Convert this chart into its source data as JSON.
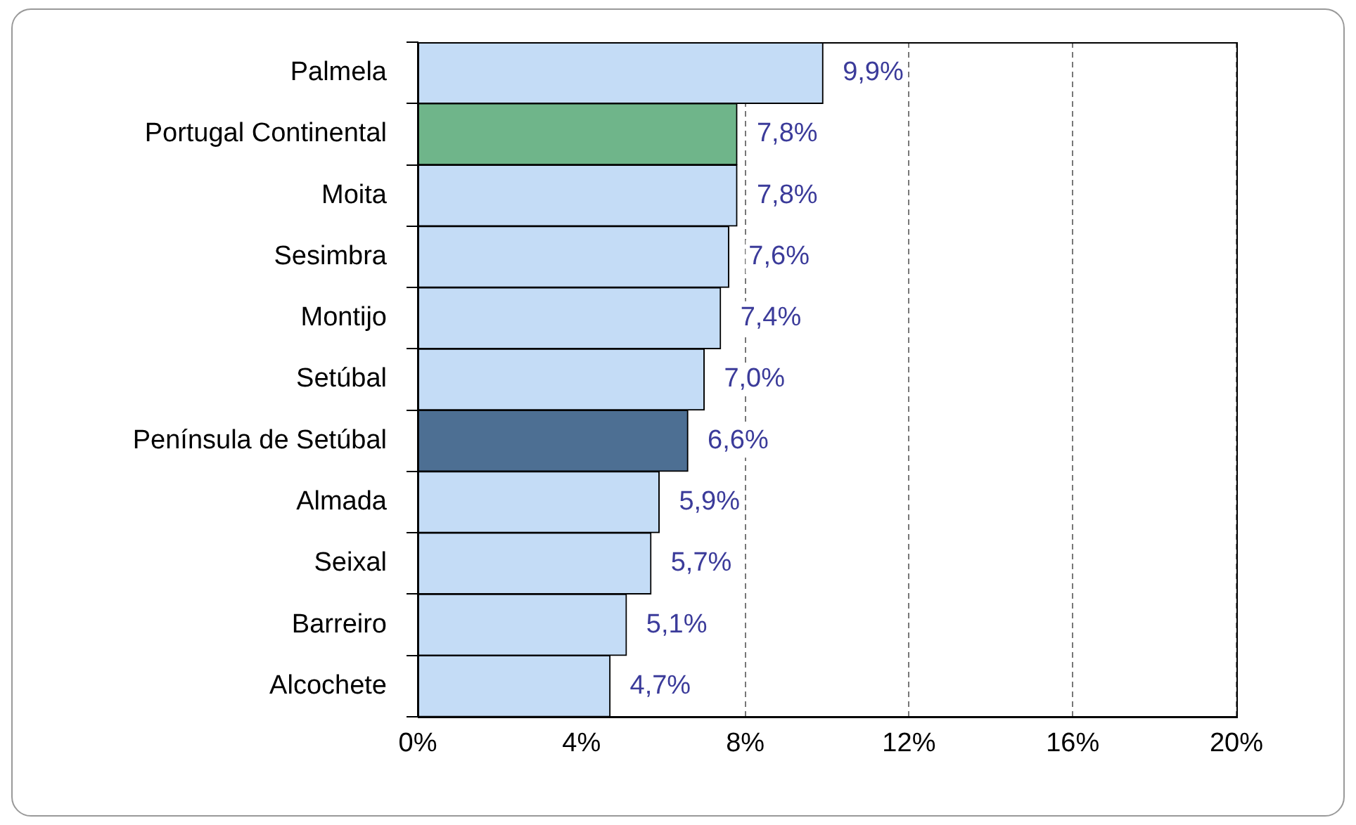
{
  "chart_data": {
    "type": "bar",
    "orientation": "horizontal",
    "categories": [
      "Palmela",
      "Portugal Continental",
      "Moita",
      "Sesimbra",
      "Montijo",
      "Setúbal",
      "Península de Setúbal",
      "Almada",
      "Seixal",
      "Barreiro",
      "Alcochete"
    ],
    "values": [
      9.9,
      7.8,
      7.8,
      7.6,
      7.4,
      7.0,
      6.6,
      5.9,
      5.7,
      5.1,
      4.7
    ],
    "value_labels": [
      "9,9%",
      "7,8%",
      "7,8%",
      "7,6%",
      "7,4%",
      "7,0%",
      "6,6%",
      "5,9%",
      "5,7%",
      "5,1%",
      "4,7%"
    ],
    "colors": [
      "#c4dcf6",
      "#6fb58a",
      "#c4dcf6",
      "#c4dcf6",
      "#c4dcf6",
      "#c4dcf6",
      "#4d6f93",
      "#c4dcf6",
      "#c4dcf6",
      "#c4dcf6",
      "#c4dcf6"
    ],
    "xlim": [
      0,
      20
    ],
    "xticks": [
      {
        "value": 0,
        "label": "0%"
      },
      {
        "value": 4,
        "label": "4%"
      },
      {
        "value": 8,
        "label": "8%"
      },
      {
        "value": 12,
        "label": "12%"
      },
      {
        "value": 16,
        "label": "16%"
      },
      {
        "value": 20,
        "label": "20%"
      }
    ],
    "grid": "x",
    "legend": false
  }
}
